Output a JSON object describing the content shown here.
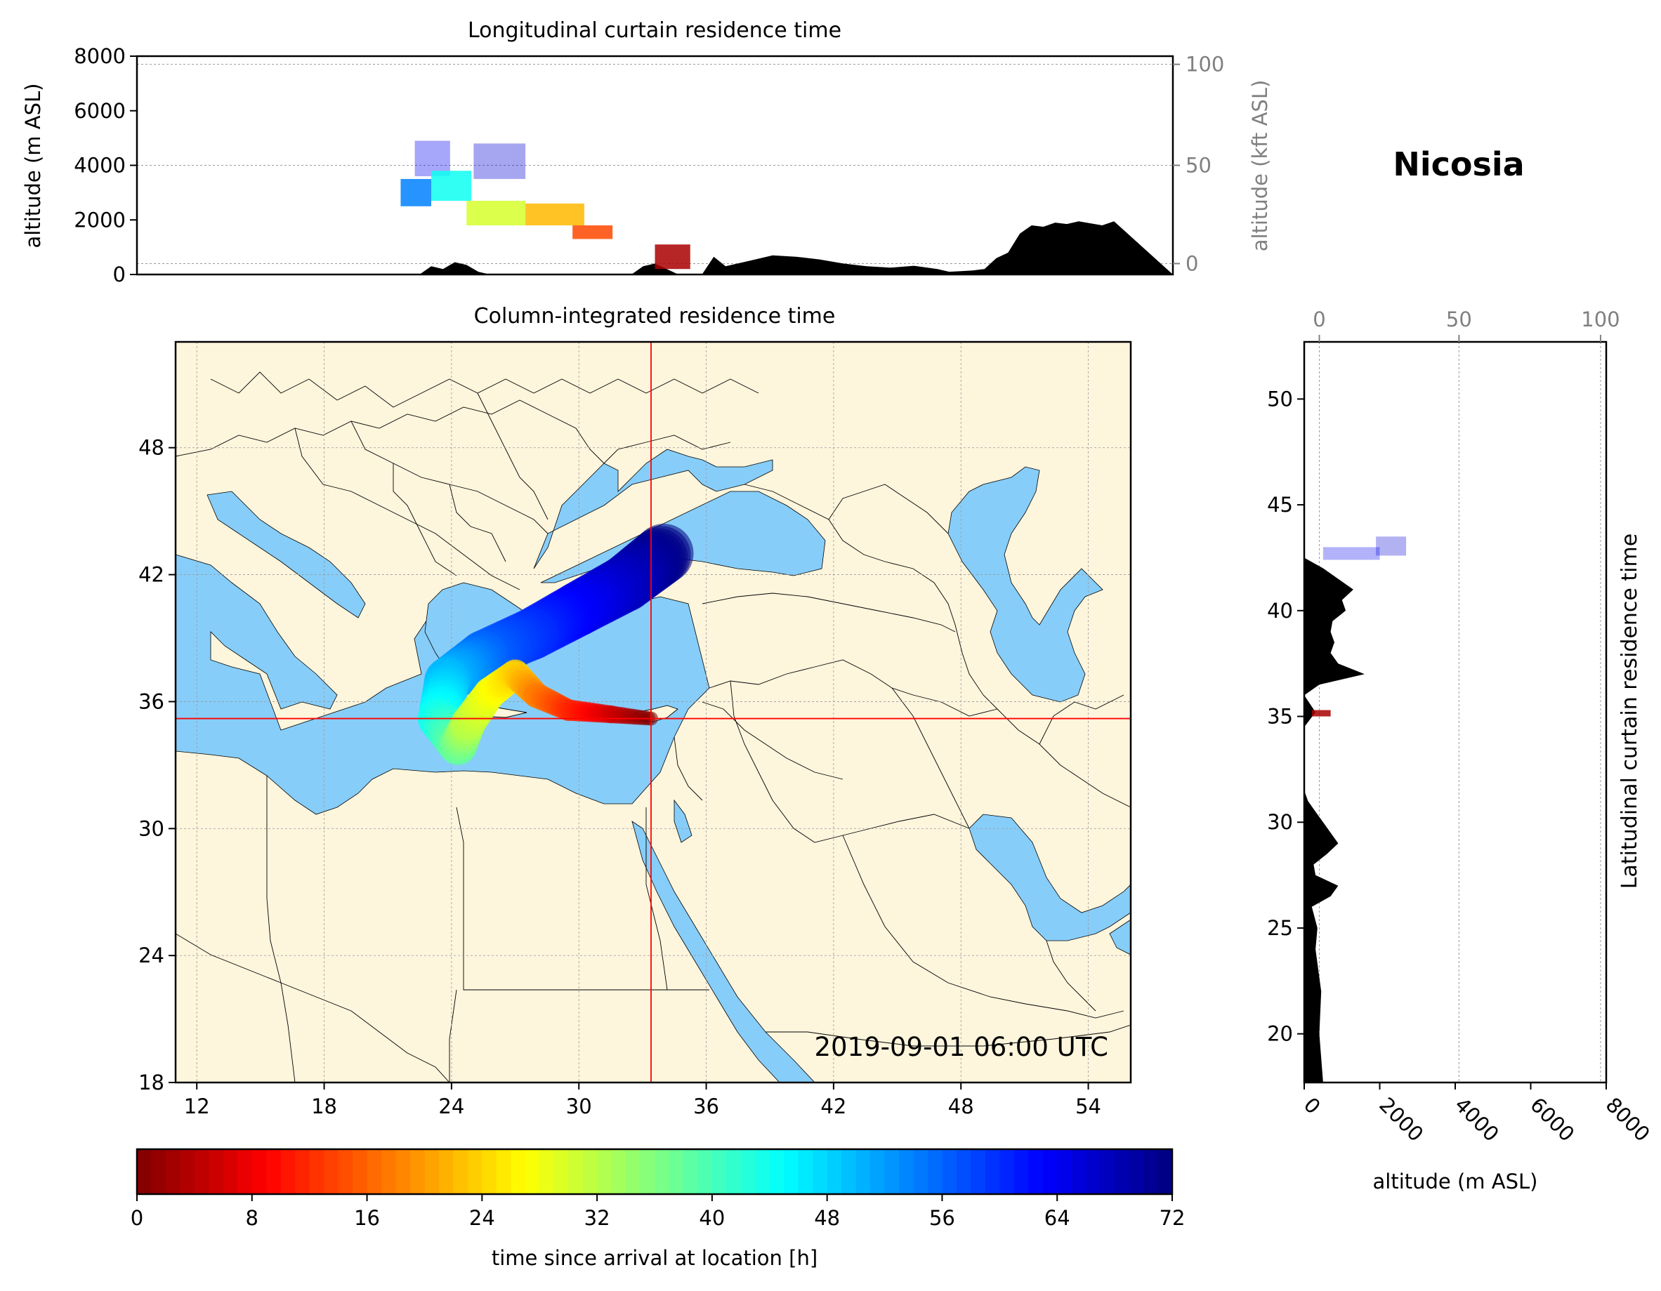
{
  "location": "Nicosia",
  "timestamp": "2019-09-01 06:00 UTC",
  "chart_data": [
    {
      "type": "area",
      "title": "Longitudinal curtain residence time",
      "xlabel": "",
      "ylabel": "altitude (m ASL)",
      "ylabel_right": "altitude (kft ASL)",
      "xlim": [
        11,
        55
      ],
      "ylim": [
        0,
        8000
      ],
      "yticks": [
        "0",
        "2000",
        "4000",
        "6000",
        "8000"
      ],
      "yticks_right": [
        "0",
        "50",
        "100"
      ],
      "grid": true,
      "terrain_lon": [
        11,
        23,
        23.5,
        24,
        24.5,
        25,
        25.5,
        26,
        32,
        32.5,
        33,
        33.5,
        34,
        35,
        35.5,
        36,
        37,
        38,
        39,
        40,
        41,
        42,
        43,
        44,
        45,
        45.5,
        46,
        46.5,
        47,
        47.5,
        48,
        48.5,
        49,
        49.5,
        50,
        50.5,
        51,
        52,
        52.5,
        55
      ],
      "terrain_alt": [
        0,
        0,
        300,
        200,
        450,
        350,
        100,
        0,
        0,
        300,
        400,
        200,
        0,
        0,
        650,
        300,
        500,
        700,
        650,
        550,
        400,
        300,
        250,
        320,
        200,
        100,
        120,
        150,
        200,
        600,
        800,
        1500,
        1800,
        1750,
        1900,
        1850,
        1950,
        1800,
        1950,
        0
      ],
      "plume": [
        {
          "lon_min": 22.8,
          "lon_max": 24.3,
          "alt_min": 3600,
          "alt_max": 4900,
          "hours": 64
        },
        {
          "lon_min": 25.3,
          "lon_max": 27.5,
          "alt_min": 3500,
          "alt_max": 4800,
          "hours": 66
        },
        {
          "lon_min": 22.2,
          "lon_max": 23.5,
          "alt_min": 2500,
          "alt_max": 3500,
          "hours": 54
        },
        {
          "lon_min": 23.5,
          "lon_max": 25.2,
          "alt_min": 2700,
          "alt_max": 3800,
          "hours": 44
        },
        {
          "lon_min": 25.0,
          "lon_max": 27.5,
          "alt_min": 1800,
          "alt_max": 2700,
          "hours": 30
        },
        {
          "lon_min": 27.5,
          "lon_max": 30.0,
          "alt_min": 1800,
          "alt_max": 2600,
          "hours": 22
        },
        {
          "lon_min": 29.5,
          "lon_max": 31.2,
          "alt_min": 1300,
          "alt_max": 1800,
          "hours": 14
        },
        {
          "lon_min": 33.0,
          "lon_max": 34.5,
          "alt_min": 200,
          "alt_max": 1100,
          "hours": 3
        }
      ]
    },
    {
      "type": "heatmap",
      "title": "Column-integrated residence time",
      "xlim": [
        11,
        56
      ],
      "ylim": [
        18,
        53
      ],
      "xticks": [
        "12",
        "18",
        "24",
        "30",
        "36",
        "42",
        "48",
        "54"
      ],
      "yticks": [
        "18",
        "24",
        "30",
        "36",
        "42",
        "48"
      ],
      "crosshair": {
        "lon": 33.4,
        "lat": 35.2
      },
      "plume_path": [
        {
          "lon": 33.4,
          "lat": 35.2,
          "hours": 0
        },
        {
          "lon": 31.5,
          "lat": 35.4,
          "hours": 6
        },
        {
          "lon": 29.5,
          "lat": 35.6,
          "hours": 12
        },
        {
          "lon": 28.0,
          "lat": 36.3,
          "hours": 18
        },
        {
          "lon": 27.0,
          "lat": 37.3,
          "hours": 24
        },
        {
          "lon": 25.8,
          "lat": 36.4,
          "hours": 28
        },
        {
          "lon": 24.8,
          "lat": 35.0,
          "hours": 32
        },
        {
          "lon": 24.3,
          "lat": 33.9,
          "hours": 38
        },
        {
          "lon": 23.4,
          "lat": 35.2,
          "hours": 44
        },
        {
          "lon": 23.8,
          "lat": 37.0,
          "hours": 50
        },
        {
          "lon": 25.5,
          "lat": 38.2,
          "hours": 56
        },
        {
          "lon": 27.8,
          "lat": 39.2,
          "hours": 60
        },
        {
          "lon": 30.0,
          "lat": 40.4,
          "hours": 64
        },
        {
          "lon": 32.2,
          "lat": 41.6,
          "hours": 68
        },
        {
          "lon": 34.0,
          "lat": 43.0,
          "hours": 72
        }
      ]
    },
    {
      "type": "area",
      "title": "Latitudinal curtain residence time",
      "xlabel": "altitude (m ASL)",
      "xlabel_top": "",
      "xlim": [
        0,
        8000
      ],
      "ylim": [
        17.7,
        52.7
      ],
      "xticks": [
        "0",
        "2000",
        "4000",
        "6000",
        "8000"
      ],
      "xticks_top": [
        "0",
        "50",
        "100"
      ],
      "yticks": [
        "20",
        "25",
        "30",
        "35",
        "40",
        "45",
        "50"
      ],
      "terrain_lat": [
        17.7,
        20,
        22,
        24,
        25,
        26,
        26.5,
        27,
        27.5,
        28,
        28.5,
        29,
        29.5,
        30,
        30.5,
        31,
        31.5,
        34.5,
        35.2,
        36,
        36.5,
        37,
        37.5,
        38,
        38.5,
        39,
        39.5,
        40,
        40.5,
        41,
        41.5,
        42,
        42.5,
        52.7
      ],
      "terrain_alt": [
        500,
        400,
        450,
        300,
        350,
        200,
        700,
        900,
        300,
        250,
        600,
        900,
        700,
        500,
        300,
        100,
        0,
        0,
        300,
        0,
        400,
        1600,
        900,
        700,
        800,
        700,
        750,
        1100,
        1000,
        1300,
        900,
        500,
        0,
        0
      ],
      "plume": [
        {
          "lat_min": 42.6,
          "lat_max": 43.5,
          "alt_min": 1900,
          "alt_max": 2700,
          "hours": 66
        },
        {
          "lat_min": 42.4,
          "lat_max": 43.0,
          "alt_min": 500,
          "alt_max": 2000,
          "hours": 64
        },
        {
          "lat_min": 35.0,
          "lat_max": 35.3,
          "alt_min": 200,
          "alt_max": 700,
          "hours": 3
        }
      ]
    },
    {
      "type": "colorbar",
      "label": "time since arrival at location [h]",
      "range": [
        0,
        72
      ],
      "ticks": [
        "0",
        "8",
        "16",
        "24",
        "32",
        "40",
        "48",
        "56",
        "64",
        "72"
      ],
      "colormap": [
        "#7f0000",
        "#ff0000",
        "#ff8000",
        "#ffff00",
        "#80ff80",
        "#00ffff",
        "#0080ff",
        "#0000ff",
        "#00007f"
      ]
    }
  ],
  "colors": {
    "land": "#fdf5dc",
    "sea": "#87cdf9",
    "terrain": "#000000",
    "crosshair": "#ff0000"
  }
}
